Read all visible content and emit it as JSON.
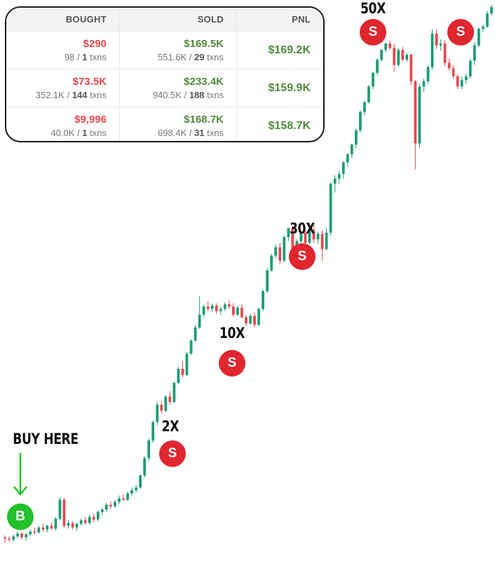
{
  "table": {
    "headers": [
      "BOUGHT",
      "SOLD",
      "PNL"
    ],
    "rows": [
      {
        "bought": "$290",
        "bought_qty": "98",
        "bought_txns": "1",
        "sold": "$169.5K",
        "sold_qty": "551.6K",
        "sold_txns": "29",
        "pnl": "$169.2K"
      },
      {
        "bought": "$73.5K",
        "bought_qty": "352.1K",
        "bought_txns": "144",
        "sold": "$233.4K",
        "sold_qty": "940.5K",
        "sold_txns": "188",
        "pnl": "$159.9K"
      },
      {
        "bought": "$9,996",
        "bought_qty": "40.0K",
        "bought_txns": "1",
        "sold": "$168.7K",
        "sold_qty": "698.4K",
        "sold_txns": "31",
        "pnl": "$158.7K"
      }
    ],
    "txns_suffix": "txns",
    "separator": "/"
  },
  "annotations": {
    "buy_label": "BUY HERE",
    "buy_marker": "B",
    "sell_marker": "S",
    "multipliers": [
      "2X",
      "10X",
      "30X",
      "50X"
    ]
  },
  "colors": {
    "up": "#1a9c74",
    "down": "#e5484d",
    "sell": "#e0262f",
    "buy": "#22c02a"
  },
  "chart_data": {
    "type": "candlestick",
    "title": "",
    "xlabel": "",
    "ylabel": "",
    "grid": false,
    "note": "unlabeled price chart; values are relative price levels (start = 1.0)",
    "candles": [
      [
        1.0,
        1.02,
        0.95,
        0.99
      ],
      [
        0.99,
        1.01,
        0.96,
        0.98
      ],
      [
        0.98,
        1.03,
        0.96,
        1.01
      ],
      [
        1.01,
        1.06,
        0.99,
        1.04
      ],
      [
        1.04,
        1.05,
        0.98,
        1.0
      ],
      [
        1.0,
        1.05,
        0.97,
        1.03
      ],
      [
        1.03,
        1.08,
        1.01,
        1.06
      ],
      [
        1.06,
        1.1,
        1.03,
        1.05
      ],
      [
        1.05,
        1.12,
        1.04,
        1.1
      ],
      [
        1.1,
        1.14,
        1.06,
        1.08
      ],
      [
        1.08,
        1.13,
        1.05,
        1.12
      ],
      [
        1.12,
        1.16,
        1.08,
        1.09
      ],
      [
        1.09,
        1.22,
        1.07,
        1.2
      ],
      [
        1.2,
        1.48,
        1.18,
        1.44
      ],
      [
        1.44,
        1.46,
        1.1,
        1.12
      ],
      [
        1.12,
        1.18,
        1.09,
        1.15
      ],
      [
        1.15,
        1.17,
        1.08,
        1.1
      ],
      [
        1.1,
        1.16,
        1.07,
        1.14
      ],
      [
        1.14,
        1.2,
        1.12,
        1.18
      ],
      [
        1.18,
        1.22,
        1.13,
        1.15
      ],
      [
        1.15,
        1.25,
        1.13,
        1.22
      ],
      [
        1.22,
        1.26,
        1.16,
        1.19
      ],
      [
        1.19,
        1.3,
        1.17,
        1.28
      ],
      [
        1.28,
        1.34,
        1.24,
        1.31
      ],
      [
        1.31,
        1.4,
        1.28,
        1.37
      ],
      [
        1.37,
        1.42,
        1.32,
        1.35
      ],
      [
        1.35,
        1.44,
        1.33,
        1.41
      ],
      [
        1.41,
        1.5,
        1.38,
        1.46
      ],
      [
        1.46,
        1.52,
        1.42,
        1.44
      ],
      [
        1.44,
        1.56,
        1.42,
        1.53
      ],
      [
        1.53,
        1.62,
        1.5,
        1.58
      ],
      [
        1.58,
        1.66,
        1.54,
        1.62
      ],
      [
        1.62,
        1.85,
        1.6,
        1.82
      ],
      [
        1.82,
        2.2,
        1.78,
        2.15
      ],
      [
        2.15,
        2.6,
        2.1,
        2.55
      ],
      [
        2.55,
        3.1,
        2.5,
        3.05
      ],
      [
        3.05,
        3.7,
        2.95,
        3.6
      ],
      [
        3.6,
        3.75,
        3.3,
        3.4
      ],
      [
        3.4,
        3.95,
        3.35,
        3.9
      ],
      [
        3.9,
        4.1,
        3.6,
        3.7
      ],
      [
        3.7,
        4.5,
        3.65,
        4.45
      ],
      [
        4.45,
        5.2,
        4.4,
        5.1
      ],
      [
        5.1,
        5.5,
        4.7,
        4.8
      ],
      [
        4.8,
        6.0,
        4.75,
        5.9
      ],
      [
        5.9,
        6.8,
        5.85,
        6.7
      ],
      [
        6.7,
        7.8,
        6.6,
        7.6
      ],
      [
        7.6,
        10.3,
        7.5,
        8.6
      ],
      [
        8.6,
        9.5,
        8.4,
        9.3
      ],
      [
        9.3,
        9.8,
        8.9,
        9.1
      ],
      [
        9.1,
        9.6,
        8.8,
        9.4
      ],
      [
        9.4,
        9.6,
        8.7,
        8.9
      ],
      [
        8.9,
        9.3,
        8.6,
        9.1
      ],
      [
        9.1,
        9.7,
        8.9,
        9.5
      ],
      [
        9.5,
        9.9,
        9.1,
        9.3
      ],
      [
        9.3,
        9.6,
        8.4,
        8.6
      ],
      [
        8.6,
        9.4,
        8.5,
        9.2
      ],
      [
        9.2,
        9.5,
        8.3,
        8.4
      ],
      [
        8.4,
        8.6,
        7.7,
        7.9
      ],
      [
        7.9,
        8.7,
        7.8,
        8.5
      ],
      [
        8.5,
        8.8,
        7.6,
        7.8
      ],
      [
        7.8,
        9.2,
        7.7,
        9.1
      ],
      [
        9.1,
        11.0,
        8.9,
        10.8
      ],
      [
        10.8,
        13.5,
        10.6,
        13.2
      ],
      [
        13.2,
        15.5,
        13.0,
        15.2
      ],
      [
        15.2,
        17.0,
        14.8,
        16.5
      ],
      [
        16.5,
        17.2,
        14.0,
        14.5
      ],
      [
        14.5,
        18.5,
        14.3,
        18.2
      ],
      [
        18.2,
        20.0,
        17.5,
        19.8
      ],
      [
        19.8,
        20.2,
        15.5,
        16.0
      ],
      [
        16.0,
        17.8,
        15.8,
        17.5
      ],
      [
        17.5,
        19.5,
        17.0,
        19.0
      ],
      [
        19.0,
        19.6,
        16.8,
        17.2
      ],
      [
        17.2,
        21.0,
        17.0,
        19.5
      ],
      [
        19.5,
        20.5,
        17.2,
        17.8
      ],
      [
        17.8,
        19.2,
        17.0,
        18.8
      ],
      [
        18.8,
        19.4,
        14.5,
        16.2
      ],
      [
        16.2,
        19.8,
        16.0,
        19.0
      ],
      [
        19.0,
        31.0,
        18.5,
        30.5
      ],
      [
        30.5,
        33.0,
        28.0,
        32.0
      ],
      [
        32.0,
        34.5,
        30.5,
        33.5
      ],
      [
        33.5,
        38.0,
        32.0,
        37.5
      ],
      [
        37.5,
        41.0,
        36.0,
        40.5
      ],
      [
        40.5,
        45.0,
        39.0,
        44.5
      ],
      [
        44.5,
        52.0,
        43.0,
        51.0
      ],
      [
        51.0,
        62.0,
        50.0,
        61.0
      ],
      [
        61.0,
        68.0,
        59.0,
        67.0
      ],
      [
        67.0,
        79.0,
        66.0,
        78.0
      ],
      [
        78.0,
        90.0,
        76.0,
        89.0
      ],
      [
        89.0,
        102.0,
        87.0,
        101.0
      ],
      [
        101.0,
        112.0,
        99.0,
        111.0
      ],
      [
        111.0,
        119.0,
        108.0,
        118.0
      ],
      [
        118.0,
        122.0,
        111.0,
        113.0
      ],
      [
        113.0,
        118.0,
        90.0,
        96.0
      ],
      [
        96.0,
        113.0,
        94.0,
        111.0
      ],
      [
        111.0,
        114.0,
        99.0,
        101.0
      ],
      [
        101.0,
        108.0,
        99.0,
        106.0
      ],
      [
        106.0,
        107.0,
        79.0,
        82.0
      ],
      [
        82.0,
        83.0,
        35.0,
        45.0
      ],
      [
        45.0,
        80.0,
        43.0,
        78.0
      ],
      [
        78.0,
        84.0,
        74.0,
        82.0
      ],
      [
        82.0,
        96.0,
        80.0,
        94.0
      ],
      [
        94.0,
        135.0,
        92.0,
        130.0
      ],
      [
        130.0,
        135.0,
        112.0,
        116.0
      ],
      [
        116.0,
        123.0,
        110.0,
        118.0
      ],
      [
        118.0,
        122.0,
        95.0,
        98.0
      ],
      [
        98.0,
        102.0,
        91.0,
        93.0
      ],
      [
        93.0,
        96.0,
        84.0,
        86.0
      ],
      [
        86.0,
        88.0,
        76.0,
        78.0
      ],
      [
        78.0,
        86.0,
        76.0,
        83.0
      ],
      [
        83.0,
        88.0,
        80.0,
        86.0
      ],
      [
        86.0,
        102.0,
        84.0,
        100.0
      ],
      [
        100.0,
        120.0,
        96.0,
        116.0
      ],
      [
        116.0,
        138.0,
        114.0,
        136.0
      ],
      [
        136.0,
        142.0,
        132.0,
        139.0
      ],
      [
        139.0,
        162.0,
        137.0,
        158.0
      ],
      [
        158.0,
        172.0,
        155.0,
        168.0
      ]
    ]
  }
}
